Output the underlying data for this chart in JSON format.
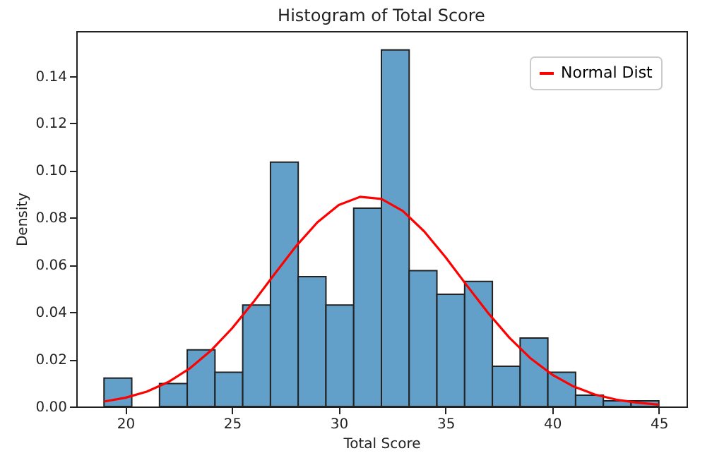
{
  "chart_data": {
    "type": "histogram",
    "title": "Histogram of Total Score",
    "xlabel": "Total Score",
    "ylabel": "Density",
    "bins": [
      19,
      20.3,
      21.6,
      22.9,
      24.2,
      25.5,
      26.8,
      28.1,
      29.4,
      30.7,
      32.0,
      33.3,
      34.6,
      35.9,
      37.2,
      38.5,
      39.8,
      41.1,
      42.4,
      43.7,
      45
    ],
    "series": [
      {
        "type": "histogram",
        "color": "#62a0ca",
        "values": [
          0.012,
          0,
          0.0097,
          0.024,
          0.0145,
          0.043,
          0.1035,
          0.055,
          0.043,
          0.084,
          0.151,
          0.0575,
          0.0475,
          0.053,
          0.017,
          0.029,
          0.0145,
          0.0048,
          0.0024,
          0.0024
        ]
      },
      {
        "type": "line",
        "name": "Normal Dist",
        "color": "#ff0000",
        "x": [
          19,
          20,
          21,
          22,
          23,
          24,
          25,
          26,
          27,
          28,
          29,
          30,
          31,
          32,
          33,
          34,
          35,
          36,
          37,
          38,
          39,
          40,
          41,
          42,
          43,
          44,
          45
        ],
        "values": [
          0.0021,
          0.0037,
          0.0063,
          0.0103,
          0.016,
          0.0236,
          0.0331,
          0.0442,
          0.0562,
          0.0679,
          0.078,
          0.0853,
          0.0888,
          0.0879,
          0.0828,
          0.0742,
          0.0633,
          0.0513,
          0.0396,
          0.0291,
          0.0203,
          0.0135,
          0.0085,
          0.0051,
          0.0029,
          0.0016,
          0.0008
        ]
      }
    ],
    "xlim": [
      17.7,
      46.3
    ],
    "ylim": [
      0,
      0.159
    ],
    "xticks": [
      20,
      25,
      30,
      35,
      40,
      45
    ],
    "yticks": [
      {
        "value": 0,
        "label": "0.00"
      },
      {
        "value": 0.02,
        "label": "0.02"
      },
      {
        "value": 0.04,
        "label": "0.04"
      },
      {
        "value": 0.06,
        "label": "0.06"
      },
      {
        "value": 0.08,
        "label": "0.08"
      },
      {
        "value": 0.1,
        "label": "0.10"
      },
      {
        "value": 0.12,
        "label": "0.12"
      },
      {
        "value": 0.14,
        "label": "0.14"
      }
    ],
    "legend": "top right",
    "grid": false
  }
}
